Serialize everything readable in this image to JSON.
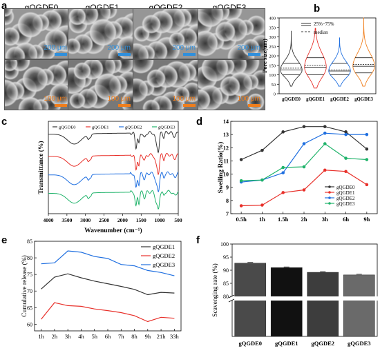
{
  "panel_labels": {
    "a": "a",
    "b": "b",
    "c": "c",
    "d": "d",
    "e": "e",
    "f": "f"
  },
  "colors": {
    "black": "#333333",
    "red": "#e8302a",
    "blue": "#1f6fe0",
    "green": "#1fb36a",
    "orange": "#f07e1c",
    "cyan_scale": "#2f8fdc"
  },
  "panel_a": {
    "titles": [
      "gQGDE0",
      "gQGDE1",
      "gQGDE2",
      "gQGDE3"
    ],
    "top_scale": "200 μm",
    "bottom_scale": "100 μm"
  },
  "chart_data": [
    {
      "id": "b",
      "type": "violin",
      "ylabel": "Pore size(um)",
      "categories": [
        "gQGDE0",
        "gQGDE1",
        "gQGDE2",
        "gQGDE3"
      ],
      "ylim": [
        0,
        400
      ],
      "yticks": [
        "0",
        "50",
        "100",
        "150",
        "200",
        "250",
        "300",
        "350",
        "400"
      ],
      "legend": {
        "iqr": "25%~75%",
        "median": "median"
      },
      "series": [
        {
          "category": "gQGDE0",
          "min": 40,
          "max": 330,
          "q1": 100,
          "median": 125,
          "q3": 160,
          "mean": 135
        },
        {
          "category": "gQGDE1",
          "min": 30,
          "max": 345,
          "q1": 100,
          "median": 140,
          "q3": 190,
          "mean": 150
        },
        {
          "category": "gQGDE2",
          "min": 40,
          "max": 295,
          "q1": 100,
          "median": 120,
          "q3": 160,
          "mean": 125
        },
        {
          "category": "gQGDE3",
          "min": 40,
          "max": 400,
          "q1": 110,
          "median": 145,
          "q3": 190,
          "mean": 155
        }
      ]
    },
    {
      "id": "c",
      "type": "line",
      "xlabel": "Wavenumber (cm⁻¹)",
      "ylabel": "Transmittance (%)",
      "xticks": [
        "4000",
        "3500",
        "3000",
        "2500",
        "2000",
        "1500",
        "1000",
        "500"
      ],
      "xlim": [
        4000,
        500
      ],
      "legend": [
        "gQGDE0",
        "gQGDE1",
        "gQGDE2",
        "gQGDE3"
      ],
      "series": [
        {
          "name": "gQGDE0",
          "offset": 0.86
        },
        {
          "name": "gQGDE1",
          "offset": 0.62
        },
        {
          "name": "gQGDE2",
          "offset": 0.42
        },
        {
          "name": "gQGDE3",
          "offset": 0.22
        }
      ]
    },
    {
      "id": "d",
      "type": "line",
      "xlabel": "",
      "ylabel": "Swelling Ratio(%)",
      "categories": [
        "0.5h",
        "1h",
        "1.5h",
        "2h",
        "3h",
        "6h",
        "9h"
      ],
      "ylim": [
        7,
        14
      ],
      "yticks": [
        "7",
        "8",
        "9",
        "10",
        "11",
        "12",
        "13",
        "14"
      ],
      "legend": [
        "gQGDE0",
        "gQGDE1",
        "gQGDE2",
        "gQGDE3"
      ],
      "series": [
        {
          "name": "gQGDE0",
          "values": [
            11.1,
            11.8,
            13.2,
            13.6,
            13.6,
            13.2,
            11.9
          ]
        },
        {
          "name": "gQGDE1",
          "values": [
            7.6,
            7.65,
            8.6,
            8.8,
            10.3,
            10.2,
            9.2
          ]
        },
        {
          "name": "gQGDE2",
          "values": [
            9.4,
            9.55,
            10.1,
            12.3,
            13.1,
            13.0,
            13.0
          ]
        },
        {
          "name": "gQGDE3",
          "values": [
            9.5,
            9.55,
            10.5,
            10.55,
            12.3,
            11.2,
            11.1
          ]
        }
      ]
    },
    {
      "id": "e",
      "type": "line",
      "xlabel": "",
      "ylabel": "Cumulative release (%)",
      "categories": [
        "1h",
        "2h",
        "3h",
        "4h",
        "5h",
        "6h",
        "7h",
        "8h",
        "9h",
        "21h",
        "33h"
      ],
      "ylim": [
        58,
        85
      ],
      "yticks": [
        "60",
        "65",
        "70",
        "75",
        "80",
        "85"
      ],
      "legend": [
        "gQGDE1",
        "gQGDE2",
        "gQGDE3"
      ],
      "series": [
        {
          "name": "gQGDE1",
          "values": [
            70.6,
            74.2,
            75.2,
            74.0,
            73.0,
            72.2,
            71.4,
            70.5,
            68.9,
            69.6,
            69.4
          ]
        },
        {
          "name": "gQGDE2",
          "values": [
            61.5,
            66.5,
            65.6,
            65.4,
            64.6,
            64.1,
            63.5,
            62.6,
            60.8,
            62.1,
            61.8
          ]
        },
        {
          "name": "gQGDE3",
          "values": [
            78.2,
            78.5,
            82.1,
            81.7,
            80.4,
            79.8,
            78.0,
            77.6,
            76.2,
            75.6,
            74.6
          ]
        }
      ]
    },
    {
      "id": "f",
      "type": "bar",
      "ylabel": "Scavenging rate (%)",
      "categories": [
        "gQGDE0",
        "gQGDE1",
        "gQGDE2",
        "gQGDE3"
      ],
      "values": [
        92.7,
        91.0,
        89.2,
        88.2
      ],
      "ylim": [
        80,
        100
      ],
      "yticks": [
        "80",
        "85",
        "90",
        "95",
        "100"
      ],
      "axis_break": true
    }
  ]
}
